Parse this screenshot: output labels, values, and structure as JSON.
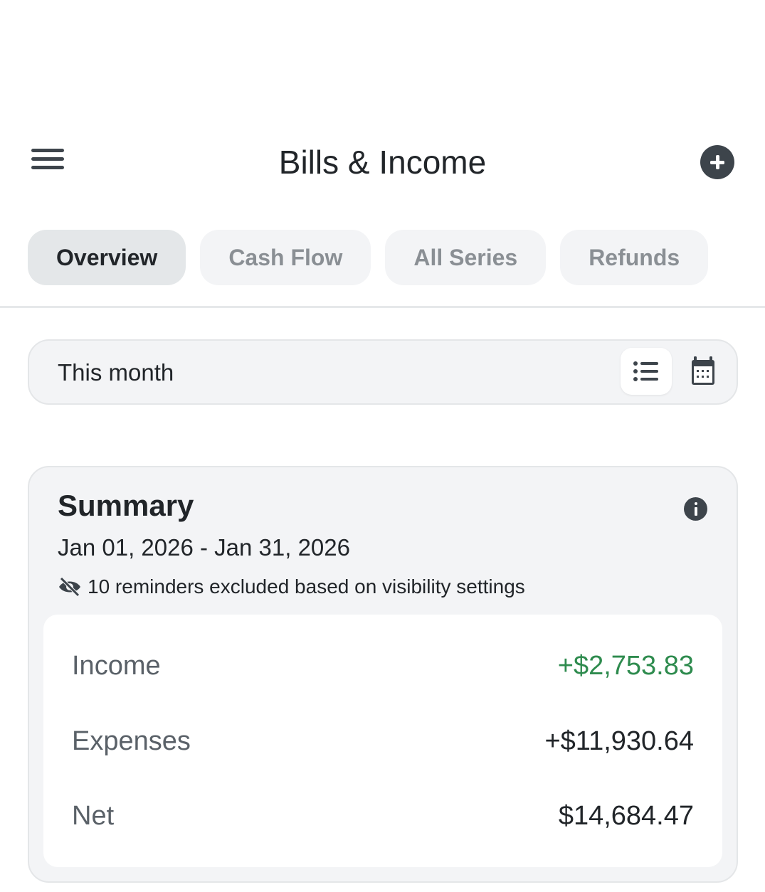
{
  "header": {
    "title": "Bills & Income",
    "menu_icon": "hamburger-icon",
    "add_icon": "plus-circle-icon"
  },
  "tabs": [
    {
      "label": "Overview",
      "active": true
    },
    {
      "label": "Cash Flow"
    },
    {
      "label": "All Series"
    },
    {
      "label": "Refunds"
    }
  ],
  "range": {
    "label": "This month",
    "list_icon": "list-icon",
    "calendar_icon": "calendar-icon"
  },
  "summary": {
    "title": "Summary",
    "date_range": "Jan 01, 2026 - Jan 31, 2026",
    "note": "10 reminders excluded based on visibility settings",
    "rows": [
      {
        "label": "Income",
        "value": "+$2,753.83"
      },
      {
        "label": "Expenses",
        "value": "+$11,930.64"
      },
      {
        "label": "Net",
        "value": "$14,684.47"
      }
    ]
  },
  "colors": {
    "positive": "#2e8b4e",
    "icon": "#3d444b"
  }
}
